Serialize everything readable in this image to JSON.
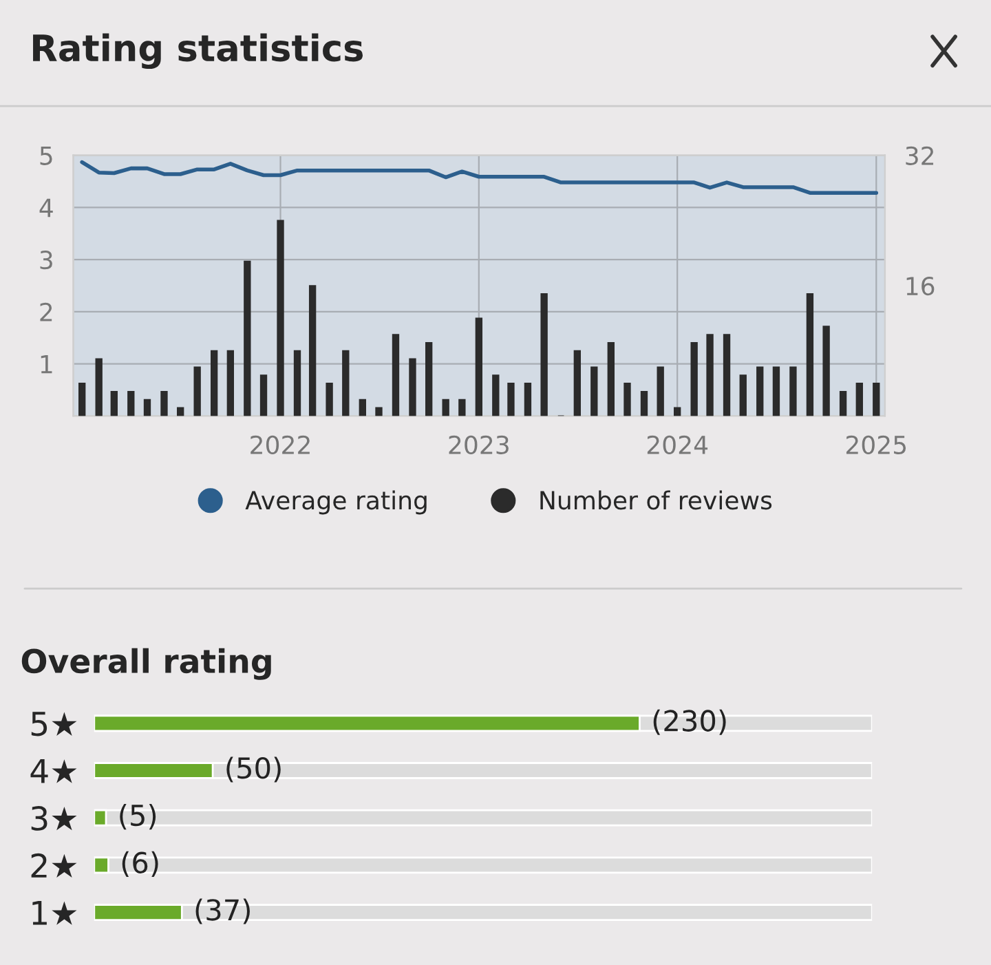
{
  "chart_data": [
    {
      "type": "bar",
      "title": "Rating statistics",
      "x": [
        "2021-01",
        "2021-02",
        "2021-03",
        "2021-04",
        "2021-05",
        "2021-06",
        "2021-07",
        "2021-08",
        "2021-09",
        "2021-10",
        "2021-11",
        "2021-12",
        "2022-01",
        "2022-02",
        "2022-03",
        "2022-04",
        "2022-05",
        "2022-06",
        "2022-07",
        "2022-08",
        "2022-09",
        "2022-10",
        "2022-11",
        "2022-12",
        "2023-01",
        "2023-02",
        "2023-03",
        "2023-04",
        "2023-05",
        "2023-06",
        "2023-07",
        "2023-08",
        "2023-09",
        "2023-10",
        "2023-11",
        "2023-12",
        "2024-01",
        "2024-02",
        "2024-03",
        "2024-04",
        "2024-05",
        "2024-06",
        "2024-07",
        "2024-08",
        "2024-09",
        "2024-10",
        "2024-11",
        "2024-12",
        "2025-01"
      ],
      "xlim": [
        "2020-12-16",
        "2025-01-17"
      ],
      "xticks": [
        {
          "value": "2022-01-01",
          "label": "2022"
        },
        {
          "value": "2023-01-01",
          "label": "2023"
        },
        {
          "value": "2024-01-01",
          "label": "2024"
        },
        {
          "value": "2025-01-01",
          "label": "2025"
        }
      ],
      "ylim": [
        0,
        5
      ],
      "yticks": [
        1,
        2,
        3,
        4,
        5
      ],
      "y2lim": [
        0,
        32
      ],
      "y2ticks": [
        16,
        32
      ],
      "grid": true,
      "legend": "bottom",
      "series": [
        {
          "name": "Average rating",
          "type": "line",
          "color": "#2c5f8d",
          "values": [
            4.87,
            4.67,
            4.66,
            4.75,
            4.75,
            4.64,
            4.64,
            4.73,
            4.73,
            4.84,
            4.71,
            4.62,
            4.62,
            4.71,
            4.71,
            4.71,
            4.71,
            4.71,
            4.71,
            4.71,
            4.71,
            4.71,
            4.58,
            4.69,
            4.59,
            4.59,
            4.59,
            4.59,
            4.59,
            4.48,
            4.48,
            4.48,
            4.48,
            4.48,
            4.48,
            4.48,
            4.48,
            4.48,
            4.38,
            4.48,
            4.39,
            4.39,
            4.39,
            4.39,
            4.28,
            4.28,
            4.28,
            4.28,
            4.28
          ]
        },
        {
          "name": "Number of reviews",
          "type": "bar",
          "axis": "y2",
          "color": "#2b2b2b",
          "values": [
            4,
            7,
            3,
            3,
            2,
            3,
            1,
            6,
            8,
            8,
            19,
            5,
            24,
            8,
            16,
            4,
            8,
            2,
            1,
            10,
            7,
            9,
            2,
            2,
            12,
            5,
            4,
            4,
            15,
            0,
            8,
            6,
            9,
            4,
            3,
            6,
            1,
            9,
            10,
            10,
            5,
            6,
            6,
            6,
            15,
            11,
            3,
            4,
            4
          ]
        }
      ]
    },
    {
      "type": "bar",
      "orientation": "horizontal",
      "title": "Overall rating",
      "categories": [
        "5★",
        "4★",
        "3★",
        "2★",
        "1★"
      ],
      "values": [
        230,
        50,
        5,
        6,
        37
      ],
      "color": "#6aaa2a",
      "value_labels": [
        "(230)",
        "(50)",
        "(5)",
        "(6)",
        "(37)"
      ]
    }
  ]
}
